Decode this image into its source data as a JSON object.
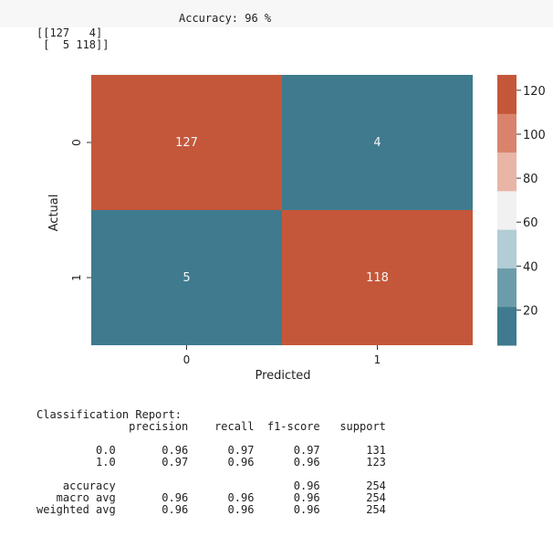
{
  "header": {
    "accuracy_text": "Accuracy: 96 %",
    "matrix_line_1": "[[127   4]",
    "matrix_line_2": " [  5 118]]"
  },
  "chart_data": {
    "type": "heatmap",
    "xlabel": "Predicted",
    "ylabel": "Actual",
    "x_ticks": [
      "0",
      "1"
    ],
    "y_ticks": [
      "0",
      "1"
    ],
    "values": [
      [
        127,
        4
      ],
      [
        5,
        118
      ]
    ],
    "colorbar": {
      "ticks": [
        "120",
        "100",
        "80",
        "60",
        "40",
        "20"
      ],
      "tick_values": [
        120,
        100,
        80,
        60,
        40,
        20
      ],
      "vmin": 4,
      "vmax": 127
    },
    "colorbar_bands": [
      "#3f7a8e",
      "#6c9caa",
      "#b2cdd5",
      "#f1f1f1",
      "#e8b5a6",
      "#d9836c",
      "#c4573a"
    ],
    "colors": {
      "high": "#c4573a",
      "low": "#3f7a8e"
    }
  },
  "report": {
    "title": "Classification Report:",
    "header_line": "              precision    recall  f1-score   support",
    "lines": [
      "",
      "         0.0       0.96      0.97      0.97       131",
      "         1.0       0.97      0.96      0.96       123",
      "",
      "    accuracy                           0.96       254",
      "   macro avg       0.96      0.96      0.96       254",
      "weighted avg       0.96      0.96      0.96       254"
    ]
  }
}
